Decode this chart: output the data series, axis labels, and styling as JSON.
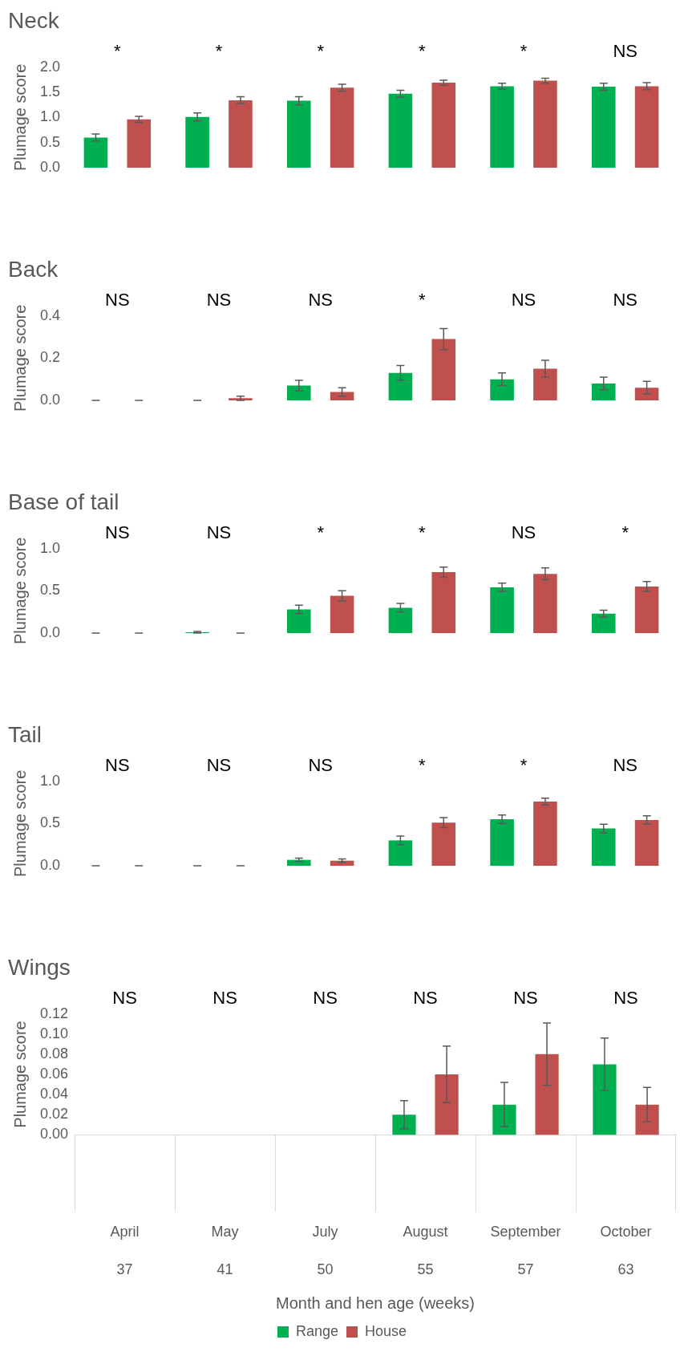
{
  "chart_data": [
    {
      "type": "bar",
      "title": "Neck",
      "ylabel": "Plumage score",
      "categories": [
        null,
        null,
        null,
        null,
        null,
        null
      ],
      "tick_labels": "y",
      "ylim": [
        0,
        2
      ],
      "yticks": [
        {
          "value": 0,
          "label": "0.0"
        },
        {
          "value": 0.5,
          "label": "0.5"
        },
        {
          "value": 1,
          "label": "1.0"
        },
        {
          "value": 1.5,
          "label": "1.5"
        },
        {
          "value": 2,
          "label": "2.0"
        }
      ],
      "series": [
        {
          "color": "#00b050",
          "values": [
            0.6,
            1.01,
            1.33,
            1.47,
            1.62,
            1.61
          ],
          "errors": [
            0.07,
            0.08,
            0.08,
            0.07,
            0.06,
            0.07
          ]
        },
        {
          "color": "#c0504d",
          "values": [
            0.96,
            1.34,
            1.59,
            1.69,
            1.73,
            1.62
          ],
          "errors": [
            0.06,
            0.07,
            0.07,
            0.05,
            0.05,
            0.07
          ]
        }
      ],
      "annotations": [
        "*",
        "*",
        "*",
        "*",
        "*",
        "NS"
      ]
    },
    {
      "type": "bar",
      "title": "Back",
      "ylabel": "Plumage score",
      "categories": [
        null,
        null,
        null,
        null,
        null,
        null
      ],
      "tick_labels": "y",
      "ylim": [
        0,
        0.4
      ],
      "yticks": [
        {
          "value": 0,
          "label": "0.0"
        },
        {
          "value": 0.2,
          "label": "0.2"
        },
        {
          "value": 0.4,
          "label": "0.4"
        }
      ],
      "series": [
        {
          "color": "#00b050",
          "values": [
            0,
            0,
            0.07,
            0.13,
            0.1,
            0.08
          ],
          "errors": [
            0,
            0,
            0.025,
            0.035,
            0.03,
            0.03
          ]
        },
        {
          "color": "#c0504d",
          "values": [
            0,
            0.01,
            0.04,
            0.29,
            0.15,
            0.06
          ],
          "errors": [
            0,
            0.01,
            0.02,
            0.05,
            0.04,
            0.03
          ]
        }
      ],
      "annotations": [
        "NS",
        "NS",
        "NS",
        "*",
        "NS",
        "NS"
      ]
    },
    {
      "type": "bar",
      "title": "Base of tail",
      "ylabel": "Plumage score",
      "categories": [
        null,
        null,
        null,
        null,
        null,
        null
      ],
      "tick_labels": "y",
      "ylim": [
        0,
        1
      ],
      "yticks": [
        {
          "value": 0,
          "label": "0.0"
        },
        {
          "value": 0.5,
          "label": "0.5"
        },
        {
          "value": 1,
          "label": "1.0"
        }
      ],
      "series": [
        {
          "color": "#00b050",
          "values": [
            0,
            0.01,
            0.28,
            0.3,
            0.54,
            0.23
          ],
          "errors": [
            0,
            0.01,
            0.05,
            0.05,
            0.05,
            0.04
          ]
        },
        {
          "color": "#c0504d",
          "values": [
            0,
            0,
            0.44,
            0.72,
            0.7,
            0.55
          ],
          "errors": [
            0,
            0,
            0.06,
            0.06,
            0.07,
            0.06
          ]
        }
      ],
      "annotations": [
        "NS",
        "NS",
        "*",
        "*",
        "NS",
        "*"
      ]
    },
    {
      "type": "bar",
      "title": "Tail",
      "ylabel": "Plumage score",
      "categories": [
        null,
        null,
        null,
        null,
        null,
        null
      ],
      "tick_labels": "y",
      "ylim": [
        0,
        1
      ],
      "yticks": [
        {
          "value": 0,
          "label": "0.0"
        },
        {
          "value": 0.5,
          "label": "0.5"
        },
        {
          "value": 1,
          "label": "1.0"
        }
      ],
      "series": [
        {
          "color": "#00b050",
          "values": [
            0,
            0,
            0.07,
            0.3,
            0.55,
            0.44
          ],
          "errors": [
            0,
            0,
            0.02,
            0.05,
            0.05,
            0.05
          ]
        },
        {
          "color": "#c0504d",
          "values": [
            0,
            0,
            0.06,
            0.51,
            0.76,
            0.54
          ],
          "errors": [
            0,
            0,
            0.02,
            0.06,
            0.04,
            0.05
          ]
        }
      ],
      "annotations": [
        "NS",
        "NS",
        "NS",
        "*",
        "*",
        "NS"
      ]
    },
    {
      "type": "bar",
      "title": "Wings",
      "ylabel": "Plumage score",
      "xlabel": "Month and hen age (weeks)",
      "legend": "bottom",
      "categories": [
        "April\n37",
        "May\n41",
        "July\n50",
        "August\n55",
        "September\n57",
        "October\n63"
      ],
      "ylim": [
        0,
        0.12
      ],
      "yticks": [
        {
          "value": 0,
          "label": "0.00"
        },
        {
          "value": 0.02,
          "label": "0.02"
        },
        {
          "value": 0.04,
          "label": "0.04"
        },
        {
          "value": 0.06,
          "label": "0.06"
        },
        {
          "value": 0.08,
          "label": "0.08"
        },
        {
          "value": 0.1,
          "label": "0.10"
        },
        {
          "value": 0.12,
          "label": "0.12"
        }
      ],
      "series": [
        {
          "name": "Range",
          "color": "#00b050",
          "values": [
            0,
            0,
            0,
            0.02,
            0.03,
            0.07
          ],
          "errors": [
            null,
            null,
            null,
            0.014,
            0.022,
            0.026
          ]
        },
        {
          "name": "House",
          "color": "#c0504d",
          "values": [
            0,
            0,
            0,
            0.06,
            0.08,
            0.03
          ],
          "errors": [
            null,
            null,
            null,
            0.028,
            0.031,
            0.017
          ]
        }
      ],
      "annotations": [
        "NS",
        "NS",
        "NS",
        "NS",
        "NS",
        "NS"
      ]
    }
  ]
}
